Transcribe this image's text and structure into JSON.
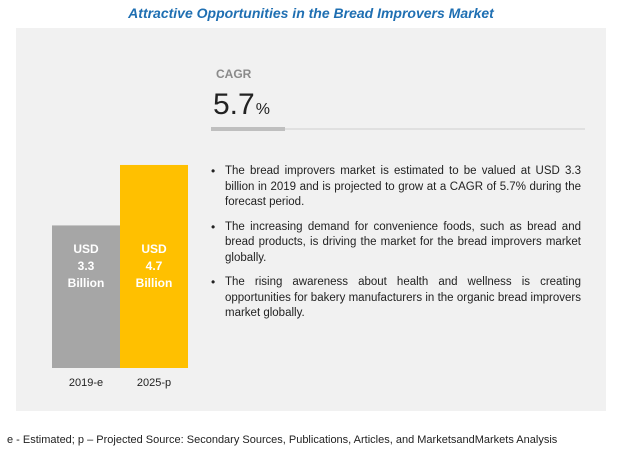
{
  "title": "Attractive Opportunities in the Bread Improvers Market",
  "cagr": {
    "label": "CAGR",
    "value": "5.7",
    "unit": "%"
  },
  "bullets": [
    "The bread improvers market is estimated to be valued at USD 3.3 billion in 2019 and is projected to grow at a CAGR of 5.7% during the forecast period.",
    "The increasing demand for convenience foods, such as bread and bread products, is driving the market for the bread improvers market globally.",
    "The rising awareness about health and wellness is creating opportunities for bakery manufacturers in the organic bread improvers market globally."
  ],
  "footer": "e - Estimated; p – Projected  Source: Secondary Sources, Publications, Articles, and MarketsandMarkets Analysis",
  "colors": {
    "title": "#1f6fb2",
    "bar_2019": "#a6a6a6",
    "bar_2025": "#ffc000",
    "panel": "#f1f1f1",
    "bar_label": "#ffffff"
  },
  "chart_data": {
    "type": "bar",
    "categories": [
      "2019-e",
      "2025-p"
    ],
    "values": [
      3.3,
      4.7
    ],
    "unit": "USD Billion",
    "bar_labels": [
      [
        "USD",
        "3.3",
        "Billion"
      ],
      [
        "USD",
        "4.7",
        "Billion"
      ]
    ],
    "title": "",
    "xlabel": "",
    "ylabel": "",
    "grid": false
  }
}
